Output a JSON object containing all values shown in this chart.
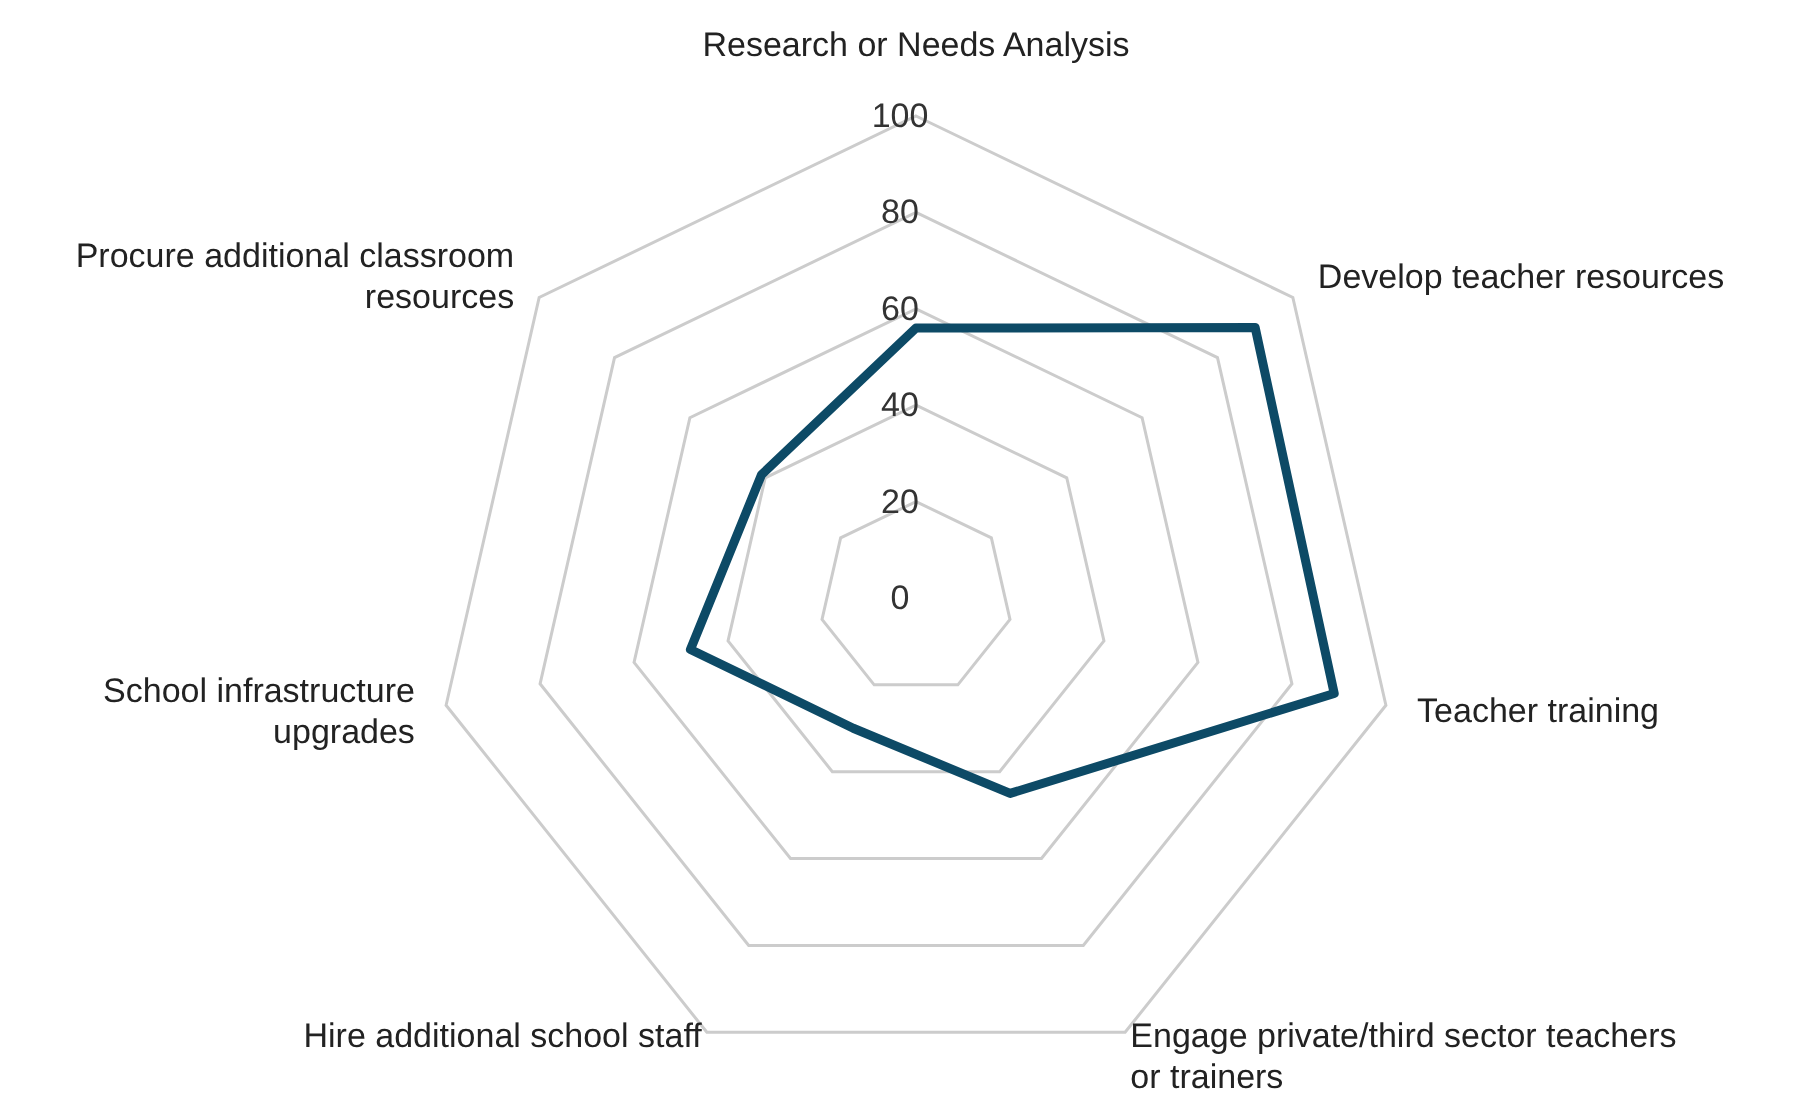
{
  "chart_data": {
    "type": "radar",
    "categories": [
      "Research or Needs Analysis",
      "Develop teacher resources",
      "Teacher training",
      "Engage private/third sector teachers or trainers",
      "Hire additional school staff",
      "School infrastructure upgrades",
      "Procure additional classroom resources"
    ],
    "series": [
      {
        "color": "#0d4a66",
        "values": [
          56,
          90,
          89,
          45,
          30,
          48,
          41
        ]
      }
    ],
    "ylim": [
      0,
      100
    ],
    "yticks": [
      0,
      20,
      40,
      60,
      80,
      100
    ],
    "grid": true,
    "legend": false,
    "marker": "none",
    "line_style": "solid"
  }
}
